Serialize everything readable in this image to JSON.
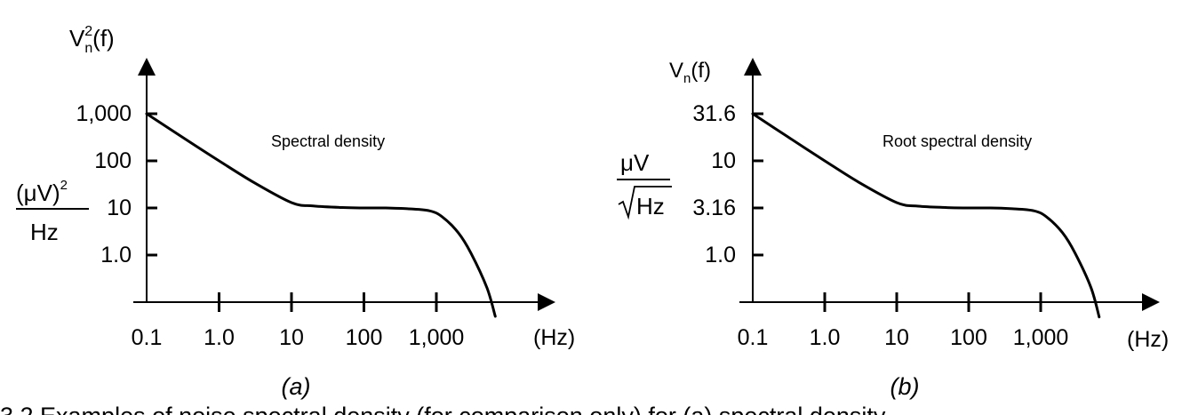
{
  "caption_fragment": "3.2   Examples of noise spectral density (for comparison only) for (a) spectral density",
  "chart_data": [
    {
      "type": "line",
      "panel_label": "(a)",
      "title": "Spectral density",
      "ylabel": "V_n^2(f)",
      "ylabel_main": "V",
      "ylabel_sub": "n",
      "ylabel_sup": "2",
      "ylabel_arg": "(f)",
      "yunit_num": "(μV)",
      "yunit_num_sup": "2",
      "yunit_den": "Hz",
      "xlabel": "(Hz)",
      "x_scale": "log",
      "y_scale": "log",
      "xlim": [
        0.1,
        10000
      ],
      "ylim": [
        0.1,
        1000
      ],
      "x_ticks": [
        0.1,
        1,
        10,
        100,
        1000
      ],
      "x_tick_labels": [
        "0.1",
        "1.0",
        "10",
        "100",
        "1,000"
      ],
      "y_ticks": [
        1000,
        100,
        10,
        1
      ],
      "y_tick_labels": [
        "1,000",
        "100",
        "10",
        "1.0"
      ],
      "series": [
        {
          "x": [
            0.1,
            0.3,
            1,
            3,
            10,
            20,
            50,
            100,
            200,
            400,
            800,
            1200,
            2000,
            3000,
            5000,
            6500
          ],
          "y": [
            1000,
            330,
            100,
            35,
            13,
            11,
            10.2,
            10,
            10,
            9.6,
            8.7,
            6.5,
            3,
            1.1,
            0.2,
            0.05
          ]
        }
      ]
    },
    {
      "type": "line",
      "panel_label": "(b)",
      "title": "Root spectral density",
      "ylabel": "V_n(f)",
      "ylabel_main": "V",
      "ylabel_sub": "n",
      "ylabel_arg": "(f)",
      "yunit_num": "μV",
      "yunit_den": "Hz",
      "xlabel": "(Hz)",
      "x_scale": "log",
      "y_scale": "log",
      "xlim": [
        0.1,
        10000
      ],
      "ylim": [
        0.316,
        31.6
      ],
      "x_ticks": [
        0.1,
        1,
        10,
        100,
        1000
      ],
      "x_tick_labels": [
        "0.1",
        "1.0",
        "10",
        "100",
        "1,000"
      ],
      "y_ticks": [
        31.6,
        10,
        3.16,
        1
      ],
      "y_tick_labels": [
        "31.6",
        "10",
        "3.16",
        "1.0"
      ],
      "series": [
        {
          "x": [
            0.1,
            0.3,
            1,
            3,
            10,
            20,
            50,
            100,
            200,
            400,
            800,
            1200,
            2000,
            3000,
            5000,
            6500
          ],
          "y": [
            31.6,
            18.2,
            10,
            5.9,
            3.6,
            3.3,
            3.19,
            3.16,
            3.16,
            3.1,
            2.95,
            2.55,
            1.73,
            1.05,
            0.45,
            0.22
          ]
        }
      ]
    }
  ]
}
